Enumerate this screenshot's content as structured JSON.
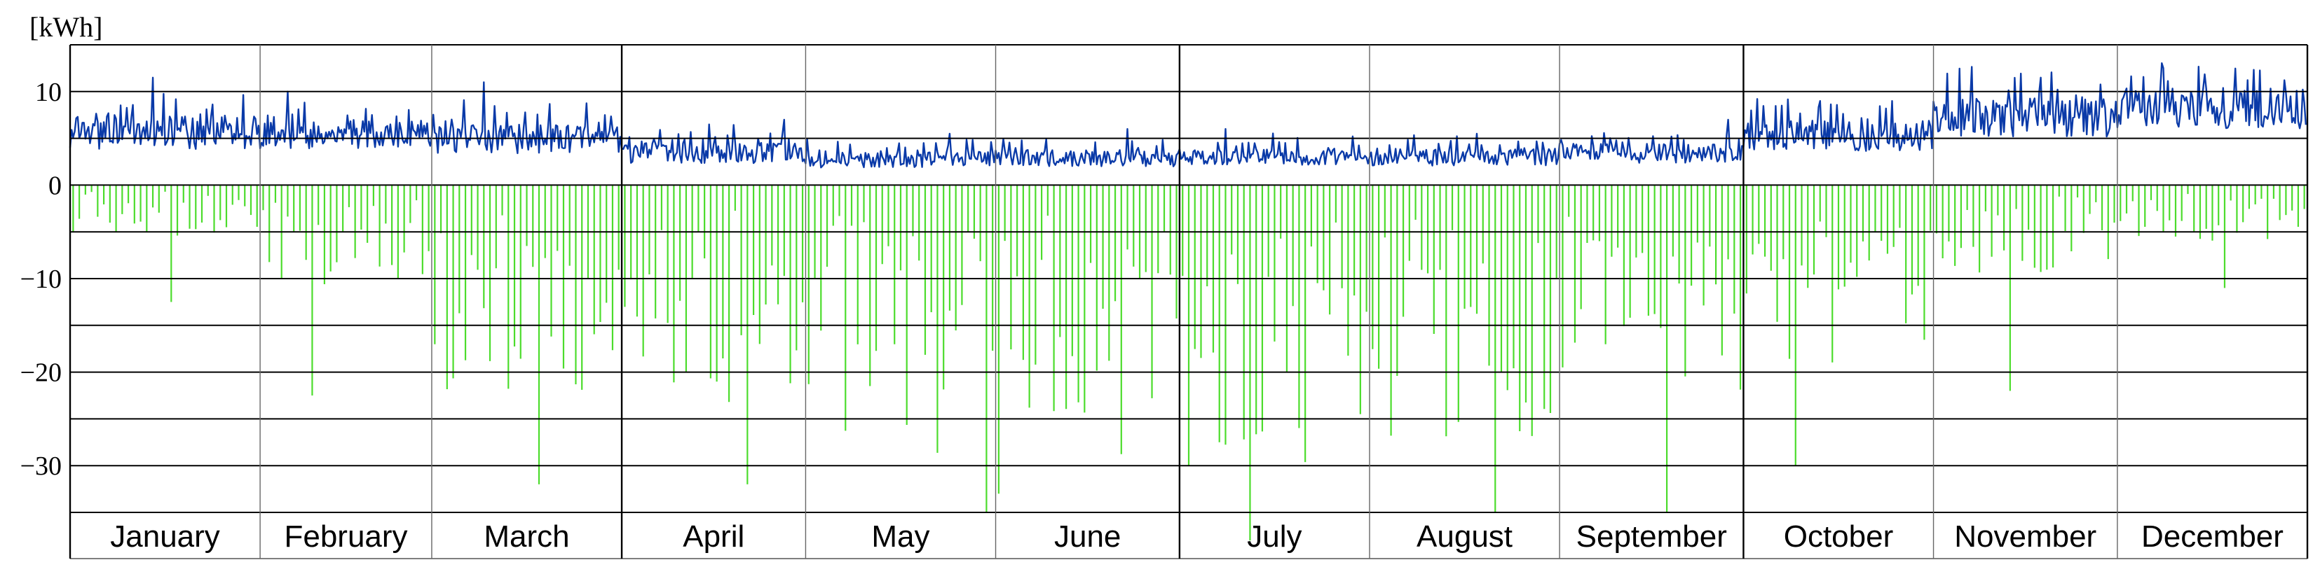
{
  "chart_data": {
    "type": "area",
    "ylabel": "[kWh]",
    "ylim": [
      -35,
      15
    ],
    "yticks": [
      10,
      0,
      -10,
      -20,
      -30
    ],
    "hgrid": [
      15,
      10,
      5,
      0,
      -5,
      -10,
      -15,
      -20,
      -25,
      -30,
      -35
    ],
    "grid": true,
    "categories": [
      "January",
      "February",
      "March",
      "April",
      "May",
      "June",
      "July",
      "August",
      "September",
      "October",
      "November",
      "December"
    ],
    "x_unit": "day of year",
    "xlim": [
      0,
      365
    ],
    "series": [
      {
        "color": "#0a3aa8",
        "style": "line",
        "monthly": [
          {
            "base": 4.9,
            "amp": 2.2,
            "peak": 11.5
          },
          {
            "base": 4.8,
            "amp": 1.9,
            "peak": 10.0
          },
          {
            "base": 4.3,
            "amp": 1.9,
            "peak": 11.0
          },
          {
            "base": 3.0,
            "amp": 1.4,
            "peak": 7.0
          },
          {
            "base": 2.4,
            "amp": 1.1,
            "peak": 5.5
          },
          {
            "base": 2.5,
            "amp": 1.1,
            "peak": 6.0
          },
          {
            "base": 2.7,
            "amp": 1.1,
            "peak": 6.0
          },
          {
            "base": 2.6,
            "amp": 1.1,
            "peak": 5.5
          },
          {
            "base": 3.0,
            "amp": 1.3,
            "peak": 7.0
          },
          {
            "base": 4.6,
            "amp": 2.0,
            "peak": 9.0
          },
          {
            "base": 6.4,
            "amp": 2.6,
            "peak": 11.5
          },
          {
            "base": 7.2,
            "amp": 2.8,
            "peak": 12.5
          }
        ]
      },
      {
        "color": "#4cdc2c",
        "style": "bars",
        "monthly": [
          {
            "typical": -4.5,
            "peak": -12.5
          },
          {
            "typical": -9.0,
            "peak": -22.5
          },
          {
            "typical": -19.0,
            "peak": -32.0
          },
          {
            "typical": -20.0,
            "peak": -32.0
          },
          {
            "typical": -24.0,
            "peak": -35.0
          },
          {
            "typical": -24.0,
            "peak": -33.0
          },
          {
            "typical": -25.0,
            "peak": -38.0
          },
          {
            "typical": -23.0,
            "peak": -35.0
          },
          {
            "typical": -19.0,
            "peak": -35.0
          },
          {
            "typical": -16.0,
            "peak": -30.0
          },
          {
            "typical": -8.0,
            "peak": -22.0
          },
          {
            "typical": -5.0,
            "peak": -11.0
          }
        ]
      }
    ]
  }
}
